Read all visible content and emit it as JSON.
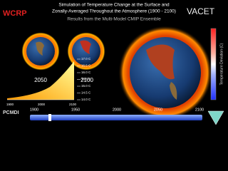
{
  "header": {
    "left_logo": "WCRP",
    "title_line1": "Simulation of Temperature Change at the Surface and",
    "title_line2": "Zonally-Averaged Throughout the Atmosphere (1900 - 2100)",
    "right_logo": "VACET",
    "subtitle": "Results from the Multi-Model CMIP Ensemble"
  },
  "globes": [
    {
      "label": "2050"
    },
    {
      "label": "2100"
    }
  ],
  "temperature_scale": [
    "17.0 C",
    "16.5 C",
    "16.0 C",
    "15.5 C",
    "15.0 C",
    "14.5 C",
    "14.0 C"
  ],
  "mini_chart_years": [
    "1900",
    "2000",
    "2100"
  ],
  "footer_logo": "PCMDI",
  "timeline": [
    "1900",
    "1950",
    "2000",
    "2050",
    "2100"
  ],
  "colorbar_label": "Temperature Deviation (C)"
}
